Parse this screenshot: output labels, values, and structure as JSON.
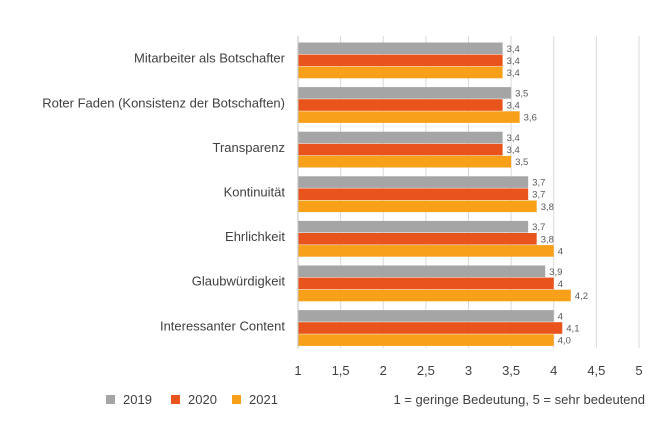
{
  "chart_data": {
    "type": "bar",
    "orientation": "horizontal",
    "title": "",
    "xlabel": "",
    "ylabel": "",
    "categories": [
      "Mitarbeiter als Botschafter",
      "Roter Faden (Konsistenz der Botschaften)",
      "Transparenz",
      "Kontinuität",
      "Ehrlichkeit",
      "Glaubwürdigkeit",
      "Interessanter Content"
    ],
    "series": [
      {
        "name": "2019",
        "color": "#a5a5a5",
        "values": [
          3.4,
          3.5,
          3.4,
          3.7,
          3.7,
          3.9,
          4.0
        ],
        "labels": [
          "3,4",
          "3,5",
          "3,4",
          "3,7",
          "3,7",
          "3,9",
          "4"
        ]
      },
      {
        "name": "2020",
        "color": "#e8541c",
        "values": [
          3.4,
          3.4,
          3.4,
          3.7,
          3.8,
          4.0,
          4.1
        ],
        "labels": [
          "3,4",
          "3,4",
          "3,4",
          "3,7",
          "3,8",
          "4",
          "4,1"
        ]
      },
      {
        "name": "2021",
        "color": "#f9a01b",
        "values": [
          3.4,
          3.6,
          3.5,
          3.8,
          4.0,
          4.2,
          4.0
        ],
        "labels": [
          "3,4",
          "3,6",
          "3,5",
          "3,8",
          "4",
          "4,2",
          "4,0"
        ]
      }
    ],
    "xlim": [
      1,
      5
    ],
    "xticks": [
      1,
      1.5,
      2,
      2.5,
      3,
      3.5,
      4,
      4.5,
      5
    ],
    "xtick_labels": [
      "1",
      "1,5",
      "2",
      "2,5",
      "3",
      "3,5",
      "4",
      "4,5",
      "5"
    ],
    "grid": true,
    "legend_position": "bottom-left",
    "note": "1 = geringe Bedeutung, 5 = sehr bedeutend"
  }
}
